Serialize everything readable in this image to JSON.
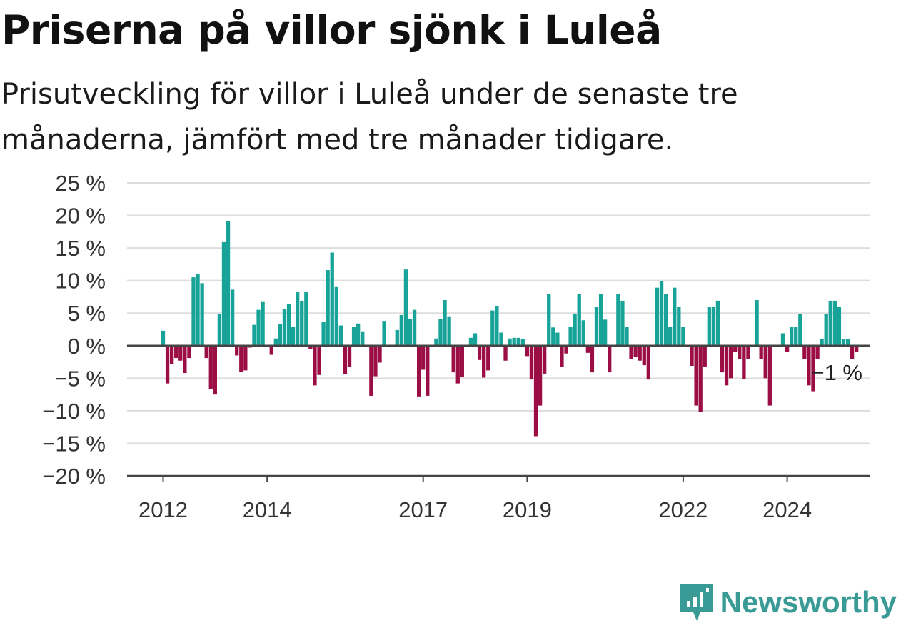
{
  "title": "Priserna på villor sjönk i Luleå",
  "subtitle": "Prisutveckling för villor i Luleå under de senaste tre månaderna, jämfört med tre månader tidigare.",
  "brand": {
    "name": "Newsworthy",
    "icon": "newsworthy-logo-icon"
  },
  "colors": {
    "positive": "#17a398",
    "negative": "#9b0d45",
    "grid": "#dddddd",
    "axis": "#444444"
  },
  "chart_data": {
    "type": "bar",
    "ylim": [
      -20,
      25
    ],
    "yticks": [
      25,
      20,
      15,
      10,
      5,
      0,
      -5,
      -10,
      -15,
      -20
    ],
    "ytick_labels": [
      "25 %",
      "20 %",
      "15 %",
      "10 %",
      "5 %",
      "0 %",
      "−5 %",
      "−10 %",
      "−15 %",
      "−20 %"
    ],
    "xticks": [
      "2012",
      "2014",
      "2017",
      "2019",
      "2022",
      "2024"
    ],
    "x_start": "2012-01",
    "last_label": "−1 %",
    "grid": true,
    "values": [
      2.3,
      -5.8,
      -2.8,
      -1.9,
      -2.3,
      -4.2,
      -1.9,
      10.5,
      11,
      9.6,
      -1.9,
      -6.7,
      -7.5,
      4.9,
      15.9,
      19.1,
      8.6,
      -1.5,
      -4,
      -3.8,
      -0.3,
      3.2,
      5.5,
      6.7,
      0,
      -1.4,
      1.1,
      3.3,
      5.6,
      6.4,
      2.9,
      8.2,
      6.9,
      8.2,
      -0.5,
      -6.1,
      -4.5,
      3.7,
      11.6,
      14.3,
      9,
      3.1,
      -4.4,
      -3.3,
      2.9,
      3.4,
      2.2,
      0,
      -7.7,
      -4.7,
      -2.6,
      3.8,
      0,
      -0.2,
      2.4,
      4.7,
      11.7,
      4.1,
      5.5,
      -7.8,
      -3.7,
      -7.7,
      0,
      1.1,
      4.1,
      7,
      4.5,
      -4.1,
      -5.8,
      -4.8,
      0,
      1.2,
      1.9,
      -2.2,
      -4.9,
      -3.8,
      5.4,
      6.1,
      2,
      -2.3,
      1.1,
      1.2,
      1.2,
      1,
      -1.6,
      -5.2,
      -13.9,
      -9.2,
      -4.3,
      7.9,
      2.8,
      2,
      -3.3,
      -1.2,
      2.9,
      4.9,
      7.9,
      3.9,
      -1.1,
      -4.1,
      5.9,
      7.9,
      4,
      -4.1,
      0,
      7.9,
      6.9,
      2.9,
      -2.1,
      -1.7,
      -2.3,
      -3,
      -5.2,
      0,
      8.9,
      9.9,
      7.9,
      2.9,
      8.9,
      5.9,
      2.9,
      0,
      -3.1,
      -9.2,
      -10.2,
      -3.2,
      5.9,
      5.9,
      6.9,
      -4.1,
      -6.1,
      -5,
      -1,
      -2.1,
      -5.1,
      -2,
      0,
      7,
      -2,
      -5,
      -9.2,
      0,
      0,
      1.9,
      -1,
      2.9,
      2.9,
      4.9,
      -2.1,
      -6.1,
      -7,
      -2.1,
      1,
      4.9,
      6.9,
      6.9,
      5.9,
      1,
      1,
      -2,
      -1
    ]
  }
}
